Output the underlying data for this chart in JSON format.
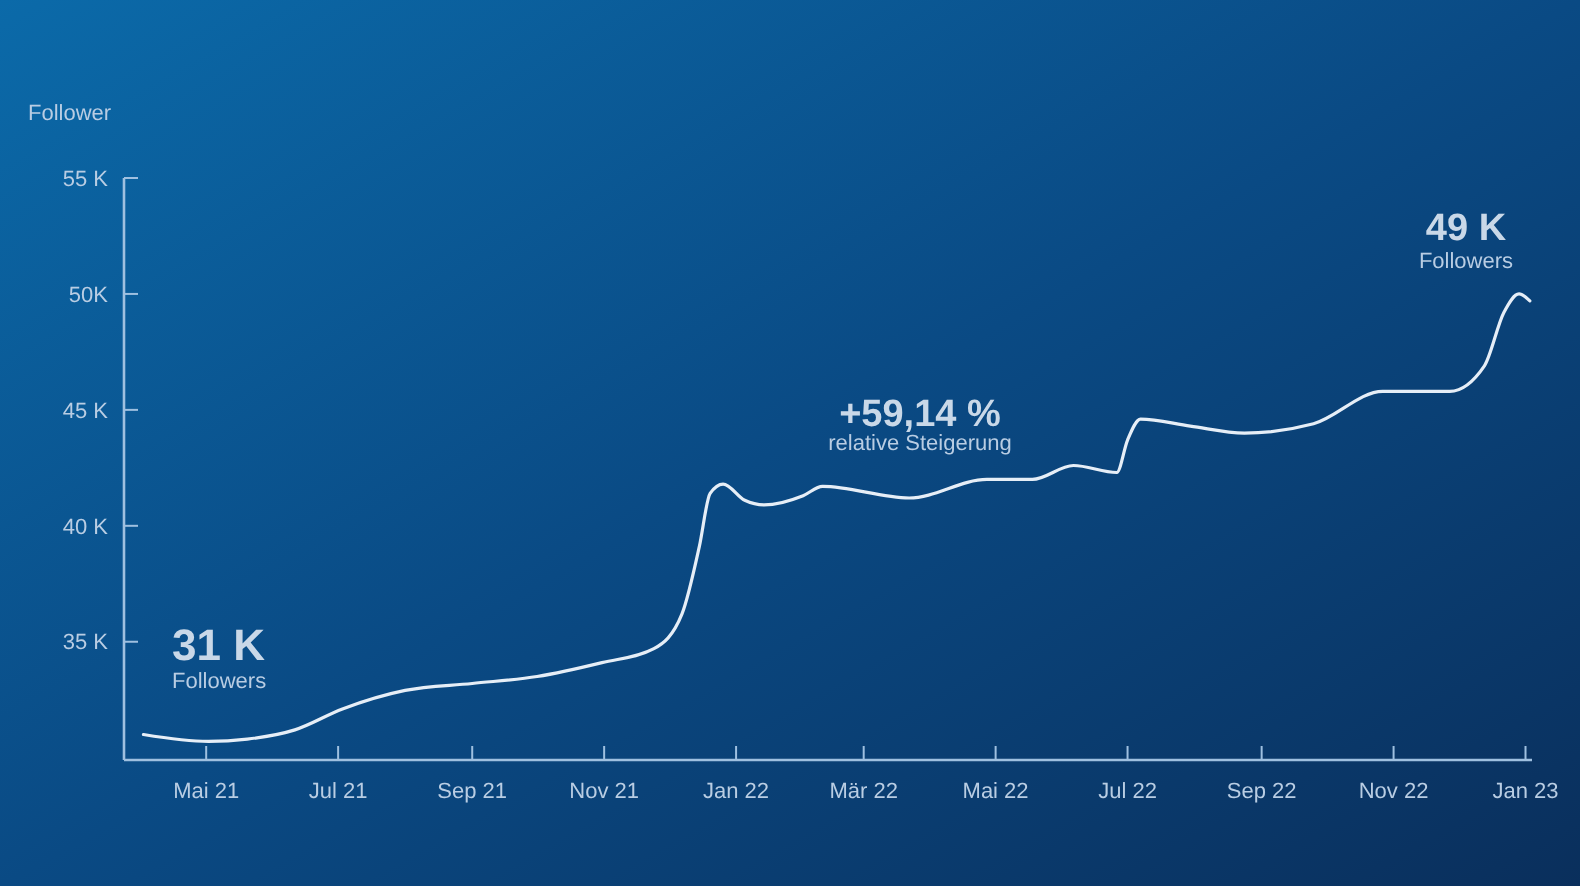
{
  "chart_data": {
    "type": "line",
    "ylabel": "Follower",
    "x": [
      "2021-04-02",
      "2021-05-02",
      "2021-05-20",
      "2021-06-11",
      "2021-07-03",
      "2021-08-01",
      "2021-09-01",
      "2021-10-01",
      "2021-10-31",
      "2021-11-24",
      "2021-12-07",
      "2021-12-15",
      "2021-12-20",
      "2021-12-26",
      "2022-01-05",
      "2022-01-14",
      "2022-02-01",
      "2022-02-10",
      "2022-03-22",
      "2022-04-27",
      "2022-05-18",
      "2022-06-06",
      "2022-06-26",
      "2022-07-01",
      "2022-07-07",
      "2022-07-30",
      "2022-08-24",
      "2022-09-25",
      "2022-10-27",
      "2022-11-27",
      "2022-12-13",
      "2022-12-22",
      "2022-12-29",
      "2023-01-03"
    ],
    "series": [
      {
        "color": "#e6eef7",
        "values": [
          31.0,
          30.7,
          30.8,
          31.2,
          32.1,
          32.9,
          33.2,
          33.5,
          34.1,
          34.7,
          36.2,
          39.1,
          41.4,
          41.8,
          41.1,
          40.9,
          41.3,
          41.7,
          41.2,
          42.0,
          42.0,
          42.6,
          42.3,
          43.7,
          44.6,
          44.3,
          44.0,
          44.4,
          45.8,
          45.8,
          46.9,
          49.2,
          50.0,
          49.7
        ]
      }
    ],
    "xlim": [
      "2021-03-24",
      "2023-01-04"
    ],
    "xticks": [
      {
        "value": "2021-05-01",
        "label": "Mai 21"
      },
      {
        "value": "2021-07-01",
        "label": "Jul 21"
      },
      {
        "value": "2021-09-01",
        "label": "Sep 21"
      },
      {
        "value": "2021-11-01",
        "label": "Nov 21"
      },
      {
        "value": "2022-01-01",
        "label": "Jan 22"
      },
      {
        "value": "2022-03-01",
        "label": "Mär 22"
      },
      {
        "value": "2022-05-01",
        "label": "Mai 22"
      },
      {
        "value": "2022-07-01",
        "label": "Jul 22"
      },
      {
        "value": "2022-09-01",
        "label": "Sep 22"
      },
      {
        "value": "2022-11-01",
        "label": "Nov 22"
      },
      {
        "value": "2023-01-01",
        "label": "Jan 23"
      }
    ],
    "ylim": [
      29.9,
      55
    ],
    "yticks": [
      {
        "value": 35,
        "label": "35 K"
      },
      {
        "value": 40,
        "label": "40 K"
      },
      {
        "value": 45,
        "label": "45 K"
      },
      {
        "value": 50,
        "label": "50K"
      },
      {
        "value": 55,
        "label": "55 K"
      }
    ],
    "grid": false,
    "marker": "none",
    "line_style": "solid",
    "annotations": [
      "31 K",
      "Followers",
      "+59,14 %",
      "relative Steigerung",
      "49 K",
      "Followers"
    ]
  }
}
